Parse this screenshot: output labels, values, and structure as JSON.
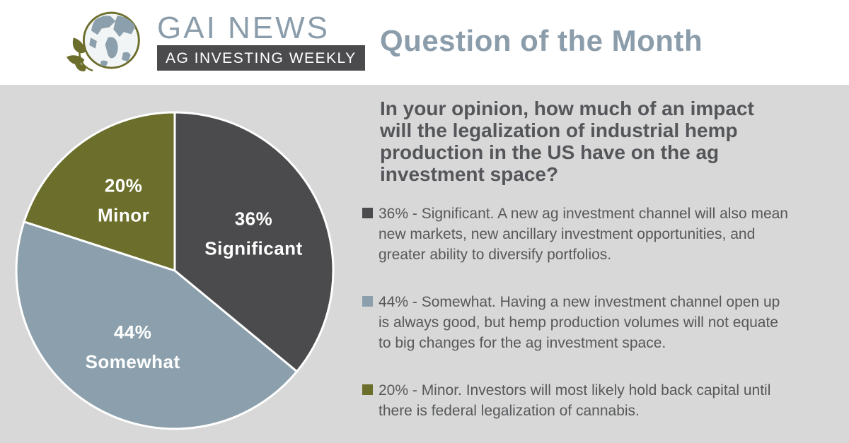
{
  "header": {
    "logo": {
      "title": "GAI NEWS",
      "subtitle": "AG INVESTING WEEKLY",
      "icon": "globe-with-leaves-icon"
    },
    "title": "Question of the Month"
  },
  "main": {
    "question_lines": [
      "In your opinion, how much of an impact",
      "will the legalization of industrial hemp",
      "production in the US have on the ag",
      "investment space?"
    ],
    "bullets": [
      {
        "percent": "36%",
        "label": "Significant",
        "color": "#4b4b4d",
        "lines": [
          "36% - Significant. A new ag investment channel will also mean",
          "new markets, new ancillary investment opportunities, and",
          "greater ability to diversify portfolios."
        ]
      },
      {
        "percent": "44%",
        "label": "Somewhat",
        "color": "#8ba0ac",
        "lines": [
          "44% - Somewhat. Having a new investment channel open up",
          "is always good, but hemp production volumes will not equate",
          "to big changes for the ag investment space."
        ]
      },
      {
        "percent": "20%",
        "label": "Minor",
        "color": "#6c6e2b",
        "lines": [
          "20% - Minor. Investors will most likely hold back capital until",
          "there is federal legalization of cannabis."
        ]
      }
    ]
  },
  "chart_data": {
    "type": "pie",
    "title": "Question of the Month",
    "categories": [
      "Significant",
      "Somewhat",
      "Minor"
    ],
    "values": [
      36,
      44,
      20
    ],
    "colors": [
      "#4b4b4d",
      "#8ba0ac",
      "#6c6e2b"
    ],
    "slice_labels": [
      [
        "36%",
        "Significant"
      ],
      [
        "44%",
        "Somewhat"
      ],
      [
        "20%",
        "Minor"
      ]
    ],
    "start_angle_deg": 0,
    "direction": "clockwise",
    "slice_border_color": "#ffffff",
    "label_radius_frac": 0.55,
    "legend_position": "right-as-bullet-list"
  },
  "colors": {
    "page_background": "#ffffff",
    "panel_background": "#d8d8d8",
    "brand_blue_gray": "#8b9dab",
    "dark_gray": "#4b4b4d",
    "olive_green": "#6c6e2b",
    "body_text": "#57585a",
    "question_text": "#545659"
  }
}
